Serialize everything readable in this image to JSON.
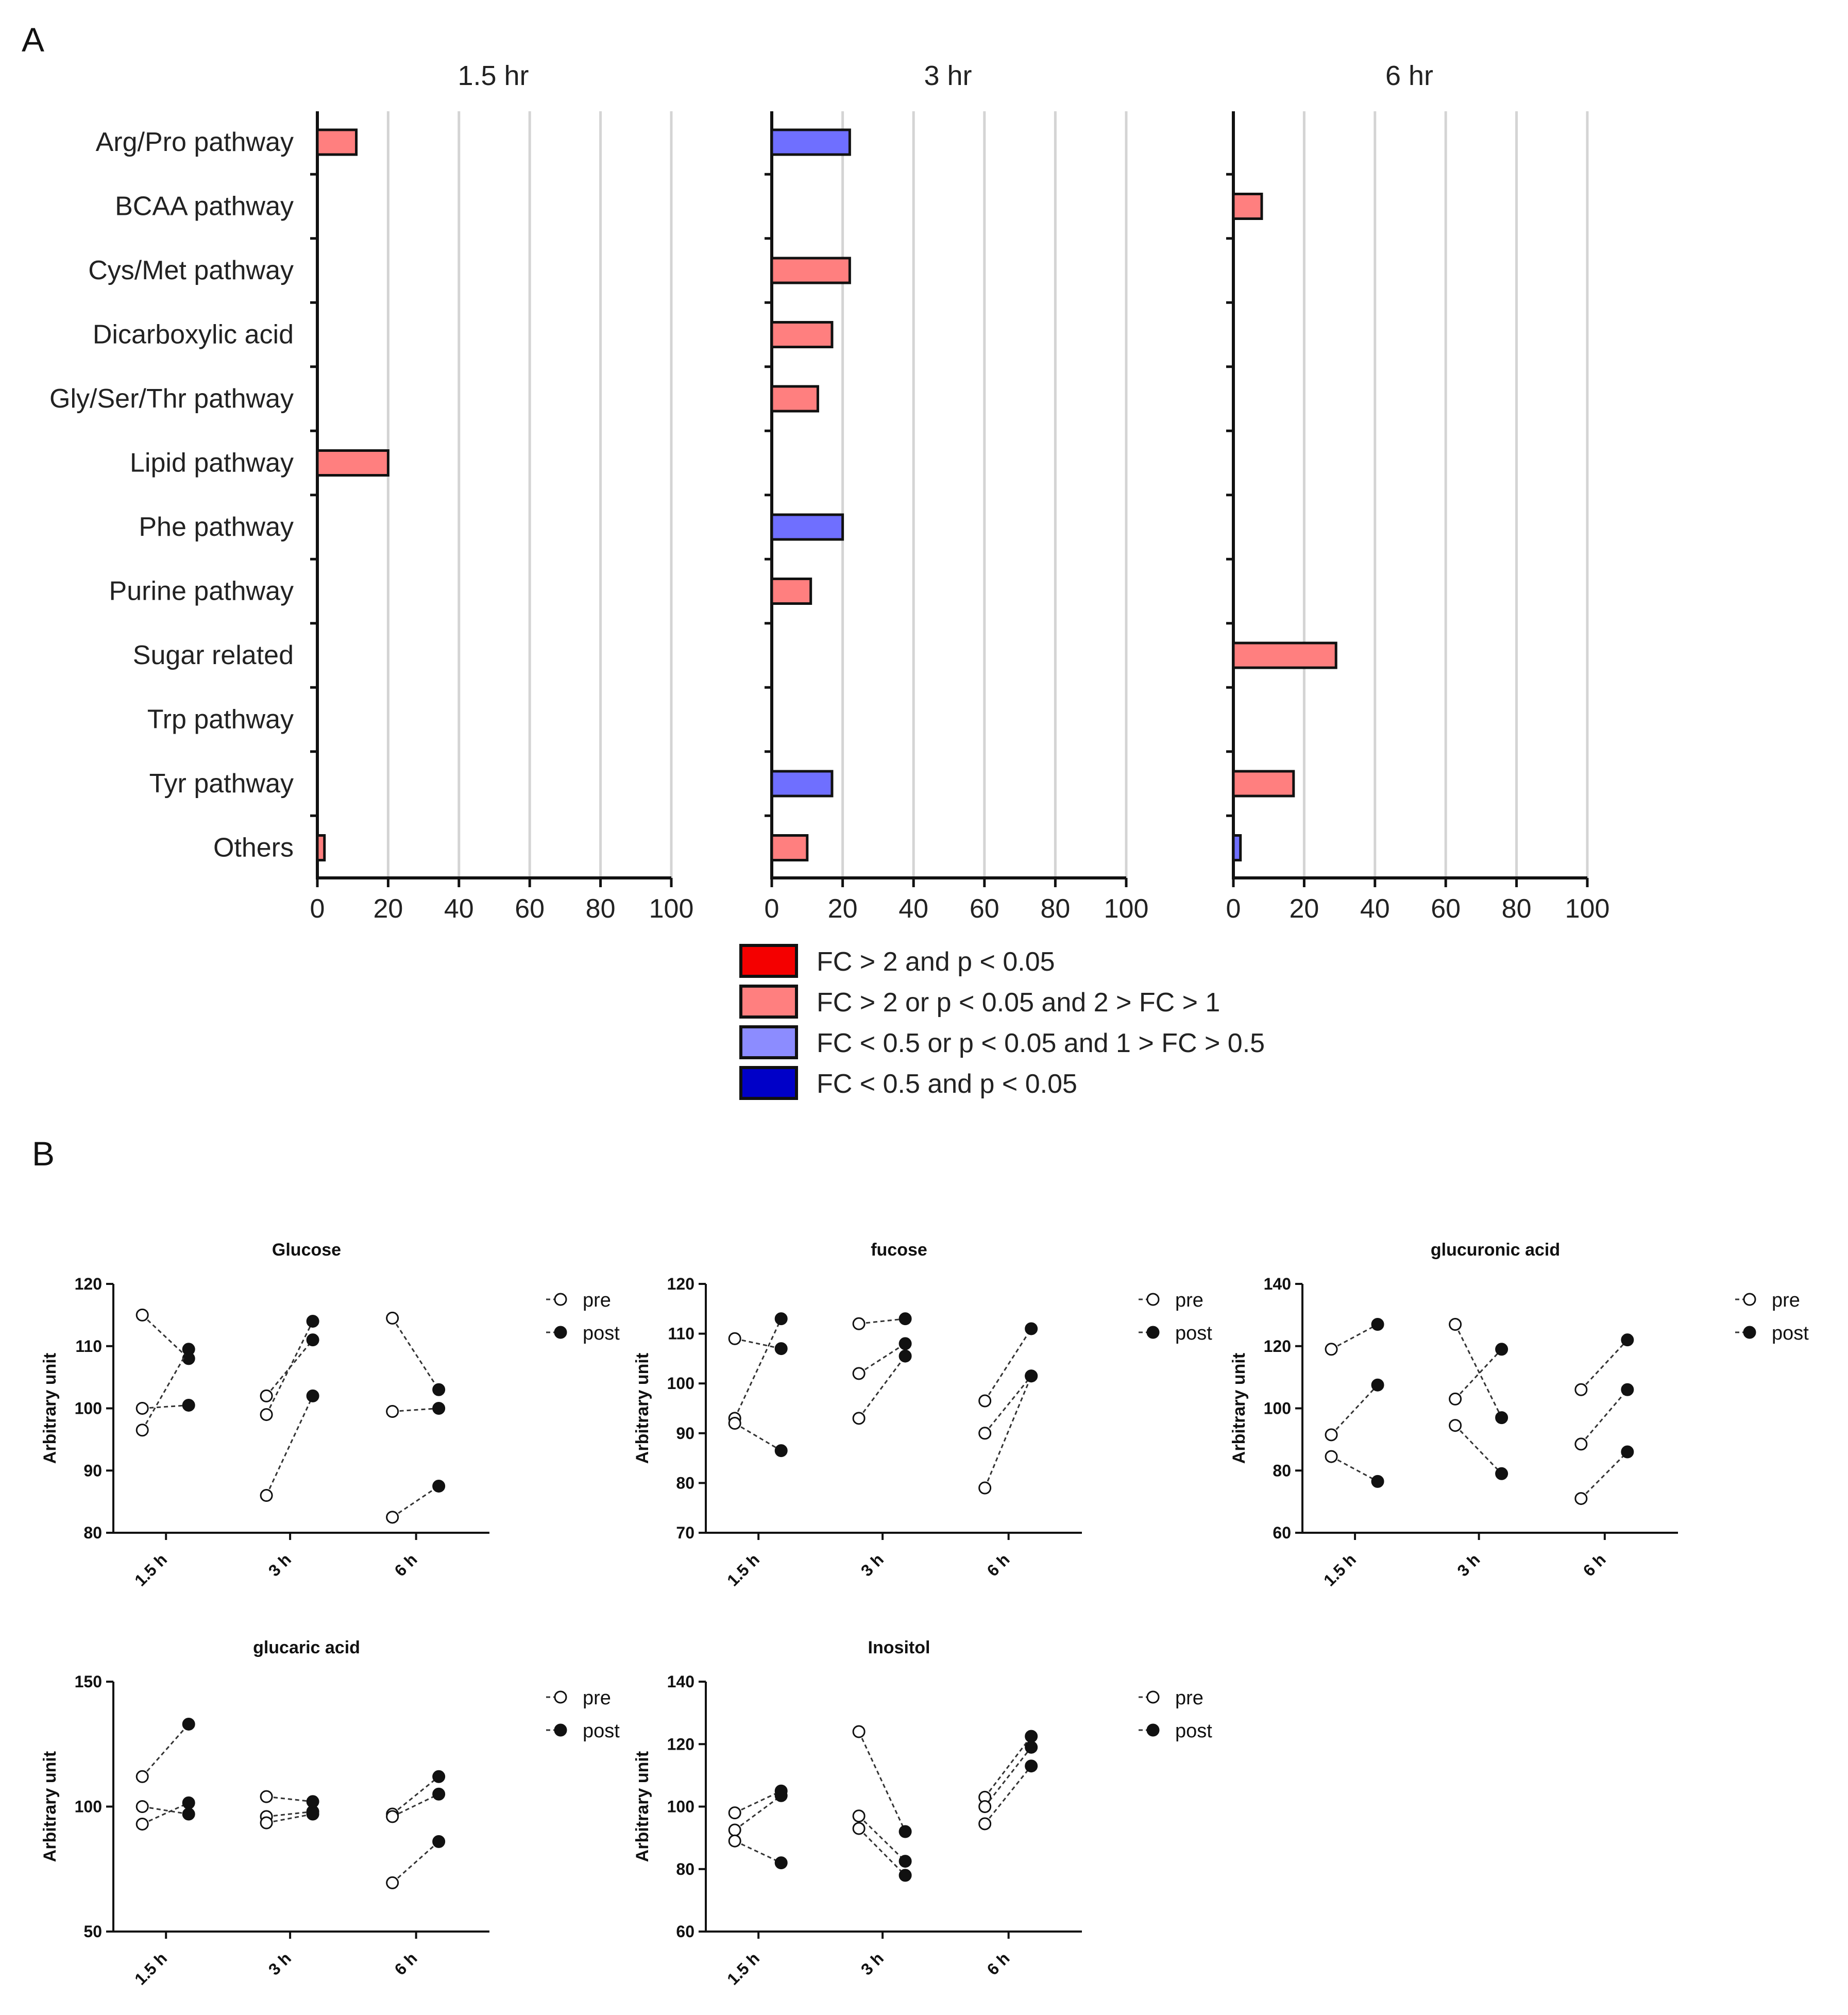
{
  "panel_labels": {
    "a": "A",
    "b": "B"
  },
  "colors": {
    "fc_gt2_and_p": "#f40000",
    "fc_gt2_or_p": "#ff7f7f",
    "fc_lt05_or_p": "#8c8cff",
    "fc_lt05_and_p": "#0000c8",
    "bar_red_panel": "#ff7f7f",
    "bar_blue_panel": "#6f6fff",
    "grid": "#d4d4d4",
    "axis": "#111111",
    "small_line": "#333333"
  },
  "bar_categories": [
    "Arg/Pro pathway",
    "BCAA pathway",
    "Cys/Met pathway",
    "Dicarboxylic acid",
    "Gly/Ser/Thr pathway",
    "Lipid pathway",
    "Phe pathway",
    "Purine pathway",
    "Sugar related",
    "Trp pathway",
    "Tyr pathway",
    "Others"
  ],
  "bar_ticks": [
    "0",
    "20",
    "40",
    "60",
    "80",
    "100"
  ],
  "legend": [
    {
      "label": "FC > 2 and p < 0.05",
      "color": "#f40000"
    },
    {
      "label": "FC > 2 or p < 0.05 and 2 > FC > 1",
      "color": "#ff7f7f"
    },
    {
      "label": "FC < 0.5 or p < 0.05 and 1 > FC > 0.5",
      "color": "#8c8cff"
    },
    {
      "label": "FC < 0.5 and p < 0.05",
      "color": "#0000c8"
    }
  ],
  "small_common": {
    "ylabel": "Arbitrary unit",
    "pre_label": "pre",
    "post_label": "post"
  },
  "chart_data": [
    {
      "type": "bar",
      "orientation": "horizontal",
      "title": "1.5 hr",
      "categories": [
        "Arg/Pro pathway",
        "BCAA pathway",
        "Cys/Met pathway",
        "Dicarboxylic acid",
        "Gly/Ser/Thr pathway",
        "Lipid pathway",
        "Phe pathway",
        "Purine pathway",
        "Sugar related",
        "Trp pathway",
        "Tyr pathway",
        "Others"
      ],
      "values": [
        11,
        0,
        0,
        0,
        0,
        20,
        0,
        0,
        0,
        0,
        0,
        2
      ],
      "value_direction": [
        "up",
        null,
        null,
        null,
        null,
        "up",
        null,
        null,
        null,
        null,
        null,
        "up"
      ],
      "xlim": [
        0,
        100
      ],
      "xticks": [
        0,
        20,
        40,
        60,
        80,
        100
      ],
      "grid": true
    },
    {
      "type": "bar",
      "orientation": "horizontal",
      "title": "3 hr",
      "categories": [
        "Arg/Pro pathway",
        "BCAA pathway",
        "Cys/Met pathway",
        "Dicarboxylic acid",
        "Gly/Ser/Thr pathway",
        "Lipid pathway",
        "Phe pathway",
        "Purine pathway",
        "Sugar related",
        "Trp pathway",
        "Tyr pathway",
        "Others"
      ],
      "values": [
        22,
        0,
        22,
        17,
        13,
        0,
        20,
        11,
        0,
        0,
        17,
        10
      ],
      "value_direction": [
        "down",
        null,
        "up",
        "up",
        "up",
        null,
        "down",
        "up",
        null,
        null,
        "down",
        "up"
      ],
      "xlim": [
        0,
        100
      ],
      "xticks": [
        0,
        20,
        40,
        60,
        80,
        100
      ],
      "grid": true
    },
    {
      "type": "bar",
      "orientation": "horizontal",
      "title": "6 hr",
      "categories": [
        "Arg/Pro pathway",
        "BCAA pathway",
        "Cys/Met pathway",
        "Dicarboxylic acid",
        "Gly/Ser/Thr pathway",
        "Lipid pathway",
        "Phe pathway",
        "Purine pathway",
        "Sugar related",
        "Trp pathway",
        "Tyr pathway",
        "Others"
      ],
      "values": [
        0,
        8,
        0,
        0,
        0,
        0,
        0,
        0,
        29,
        0,
        17,
        2
      ],
      "value_direction": [
        null,
        "up",
        null,
        null,
        null,
        null,
        null,
        null,
        "up",
        null,
        "up",
        "down"
      ],
      "xlim": [
        0,
        100
      ],
      "xticks": [
        0,
        20,
        40,
        60,
        80,
        100
      ],
      "grid": true
    },
    {
      "type": "scatter",
      "subtype": "paired",
      "title": "Glucose",
      "ylabel": "Arbitrary unit",
      "groups": [
        "1.5 h",
        "3 h",
        "6 h"
      ],
      "ylim": [
        80,
        120
      ],
      "yticks": [
        80,
        90,
        100,
        110,
        120
      ],
      "pairs": [
        [
          {
            "pre": 115,
            "post": 108
          },
          {
            "pre": 100,
            "post": 100.5
          },
          {
            "pre": 96.5,
            "post": 109.5
          }
        ],
        [
          {
            "pre": 102,
            "post": 111
          },
          {
            "pre": 99,
            "post": 114
          },
          {
            "pre": 86,
            "post": 102
          }
        ],
        [
          {
            "pre": 114.5,
            "post": 103
          },
          {
            "pre": 99.5,
            "post": 100
          },
          {
            "pre": 82.5,
            "post": 87.5
          }
        ]
      ],
      "legend": [
        "pre",
        "post"
      ]
    },
    {
      "type": "scatter",
      "subtype": "paired",
      "title": "fucose",
      "ylabel": "Arbitrary unit",
      "groups": [
        "1.5 h",
        "3 h",
        "6 h"
      ],
      "ylim": [
        70,
        120
      ],
      "yticks": [
        70,
        80,
        90,
        100,
        110,
        120
      ],
      "pairs": [
        [
          {
            "pre": 109,
            "post": 107
          },
          {
            "pre": 93,
            "post": 113
          },
          {
            "pre": 92,
            "post": 86.5
          }
        ],
        [
          {
            "pre": 112,
            "post": 113
          },
          {
            "pre": 102,
            "post": 108
          },
          {
            "pre": 93,
            "post": 105.5
          }
        ],
        [
          {
            "pre": 96.5,
            "post": 111
          },
          {
            "pre": 90,
            "post": 101.5
          },
          {
            "pre": 79,
            "post": 101.5
          }
        ]
      ],
      "legend": [
        "pre",
        "post"
      ]
    },
    {
      "type": "scatter",
      "subtype": "paired",
      "title": "glucuronic acid",
      "ylabel": "Arbitrary unit",
      "groups": [
        "1.5 h",
        "3 h",
        "6 h"
      ],
      "ylim": [
        60,
        140
      ],
      "yticks": [
        60,
        80,
        100,
        120,
        140
      ],
      "pairs": [
        [
          {
            "pre": 119,
            "post": 127
          },
          {
            "pre": 91.5,
            "post": 107.5
          },
          {
            "pre": 84.5,
            "post": 76.5
          }
        ],
        [
          {
            "pre": 127,
            "post": 97
          },
          {
            "pre": 103,
            "post": 119
          },
          {
            "pre": 94.5,
            "post": 79
          }
        ],
        [
          {
            "pre": 106,
            "post": 122
          },
          {
            "pre": 88.5,
            "post": 106
          },
          {
            "pre": 71,
            "post": 86
          }
        ]
      ],
      "legend": [
        "pre",
        "post"
      ]
    },
    {
      "type": "scatter",
      "subtype": "paired",
      "title": "glucaric acid",
      "ylabel": "Arbitrary unit",
      "groups": [
        "1.5 h",
        "3 h",
        "6 h"
      ],
      "ylim": [
        50,
        150
      ],
      "yticks": [
        50,
        100,
        150
      ],
      "pairs": [
        [
          {
            "pre": 112,
            "post": 133
          },
          {
            "pre": 100,
            "post": 97
          },
          {
            "pre": 93,
            "post": 101.5
          }
        ],
        [
          {
            "pre": 104,
            "post": 102
          },
          {
            "pre": 96,
            "post": 98
          },
          {
            "pre": 93.5,
            "post": 97
          }
        ],
        [
          {
            "pre": 97,
            "post": 112
          },
          {
            "pre": 96,
            "post": 105
          },
          {
            "pre": 69.5,
            "post": 86
          }
        ]
      ],
      "legend": [
        "pre",
        "post"
      ]
    },
    {
      "type": "scatter",
      "subtype": "paired",
      "title": "Inositol",
      "ylabel": "Arbitrary unit",
      "groups": [
        "1.5 h",
        "3 h",
        "6 h"
      ],
      "ylim": [
        60,
        140
      ],
      "yticks": [
        60,
        80,
        100,
        120,
        140
      ],
      "pairs": [
        [
          {
            "pre": 98,
            "post": 105
          },
          {
            "pre": 92.5,
            "post": 103.5
          },
          {
            "pre": 89,
            "post": 82
          }
        ],
        [
          {
            "pre": 124,
            "post": 92
          },
          {
            "pre": 97,
            "post": 82.5
          },
          {
            "pre": 93,
            "post": 78
          }
        ],
        [
          {
            "pre": 103,
            "post": 122.5
          },
          {
            "pre": 100,
            "post": 119
          },
          {
            "pre": 94.5,
            "post": 113
          }
        ]
      ],
      "legend": [
        "pre",
        "post"
      ]
    }
  ]
}
